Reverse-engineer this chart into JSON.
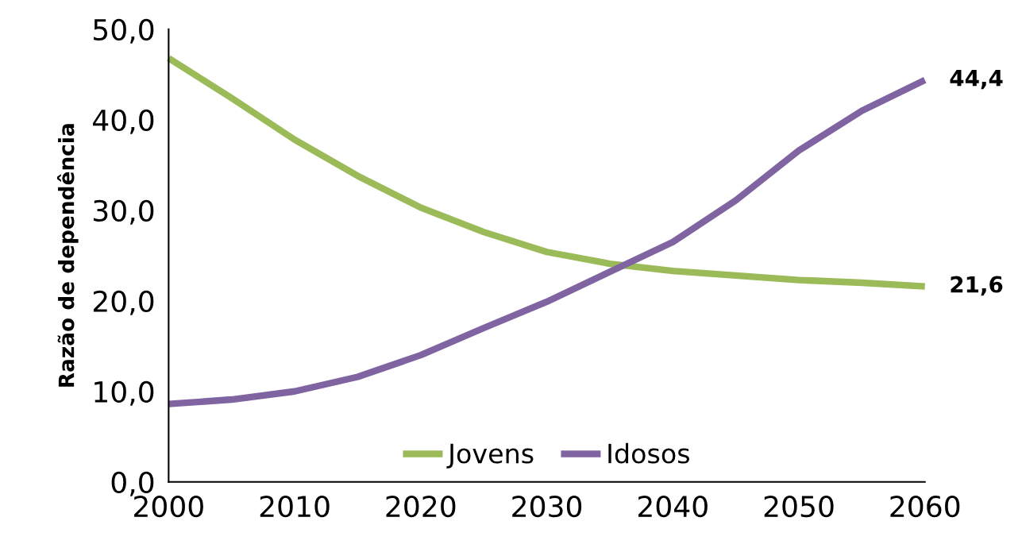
{
  "chart_data": {
    "type": "line",
    "ylabel": "Razão de dependência",
    "x": [
      2000,
      2005,
      2010,
      2015,
      2020,
      2025,
      2030,
      2035,
      2040,
      2045,
      2050,
      2055,
      2060
    ],
    "series": [
      {
        "name": "Jovens",
        "color": "#9bbb59",
        "values": [
          46.8,
          42.4,
          37.8,
          33.8,
          30.3,
          27.6,
          25.4,
          24.1,
          23.3,
          22.8,
          22.3,
          22.0,
          21.6
        ],
        "value_labels": [
          null,
          null,
          null,
          null,
          null,
          null,
          null,
          null,
          null,
          null,
          null,
          null,
          "21,6"
        ]
      },
      {
        "name": "Idosos",
        "color": "#8064a2",
        "values": [
          8.6,
          9.1,
          10.0,
          11.6,
          14.0,
          17.0,
          19.9,
          23.2,
          26.5,
          31.1,
          36.6,
          41.0,
          44.4
        ],
        "value_labels": [
          null,
          null,
          null,
          null,
          null,
          null,
          null,
          null,
          null,
          null,
          null,
          null,
          "44,4"
        ]
      }
    ],
    "xlim": [
      2000,
      2060
    ],
    "xticks": [
      2000,
      2010,
      2020,
      2030,
      2040,
      2050,
      2060
    ],
    "ylim": [
      0,
      50
    ],
    "yticks": [
      {
        "value": 0,
        "label": "0,0"
      },
      {
        "value": 10,
        "label": "10,0"
      },
      {
        "value": 20,
        "label": "20,0"
      },
      {
        "value": 30,
        "label": "30,0"
      },
      {
        "value": 40,
        "label": "40,0"
      },
      {
        "value": 50,
        "label": "50,0"
      }
    ],
    "grid": false,
    "legend": "bottom",
    "marker": "none",
    "line_style": "solid"
  }
}
